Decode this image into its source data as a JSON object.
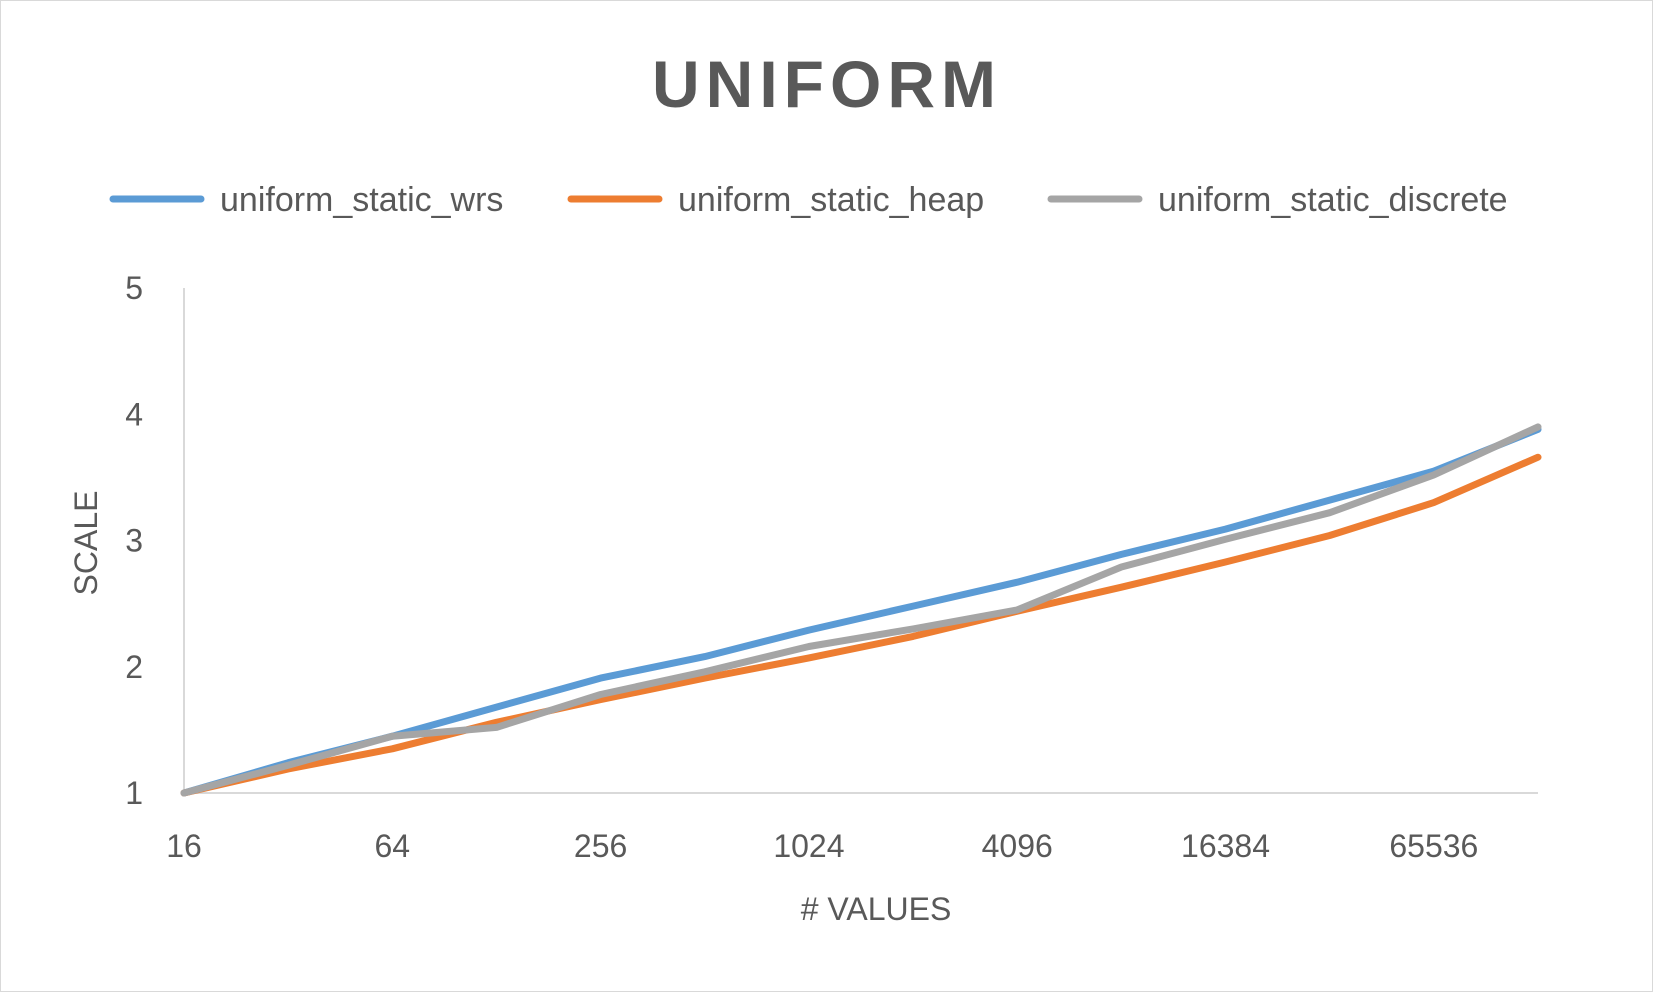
{
  "chart_data": {
    "type": "line",
    "title": "UNIFORM",
    "xlabel": "# VALUES",
    "ylabel": "SCALE",
    "x_scale": "log2",
    "x": [
      16,
      32,
      64,
      128,
      256,
      512,
      1024,
      2048,
      4096,
      8192,
      16384,
      32768,
      65536,
      131072
    ],
    "x_tick_labels": [
      "16",
      "64",
      "256",
      "1024",
      "4096",
      "16384",
      "65536"
    ],
    "x_tick_values": [
      16,
      64,
      256,
      1024,
      4096,
      16384,
      65536
    ],
    "ylim": [
      1,
      5
    ],
    "y_ticks": [
      1,
      2,
      3,
      4,
      5
    ],
    "legend_position": "top",
    "grid": {
      "horizontal": false,
      "vertical": false
    },
    "series": [
      {
        "name": "uniform_static_wrs",
        "color": "#5b9bd5",
        "values": [
          1.0,
          1.24,
          1.45,
          1.68,
          1.91,
          2.08,
          2.29,
          2.48,
          2.67,
          2.89,
          3.09,
          3.32,
          3.55,
          3.88
        ]
      },
      {
        "name": "uniform_static_heap",
        "color": "#ed7d31",
        "values": [
          1.0,
          1.19,
          1.35,
          1.56,
          1.74,
          1.91,
          2.07,
          2.24,
          2.44,
          2.63,
          2.83,
          3.04,
          3.3,
          3.66
        ]
      },
      {
        "name": "uniform_static_discrete",
        "color": "#a5a5a5",
        "values": [
          1.0,
          1.22,
          1.45,
          1.52,
          1.78,
          1.96,
          2.16,
          2.3,
          2.45,
          2.79,
          3.01,
          3.22,
          3.52,
          3.9
        ]
      }
    ]
  }
}
